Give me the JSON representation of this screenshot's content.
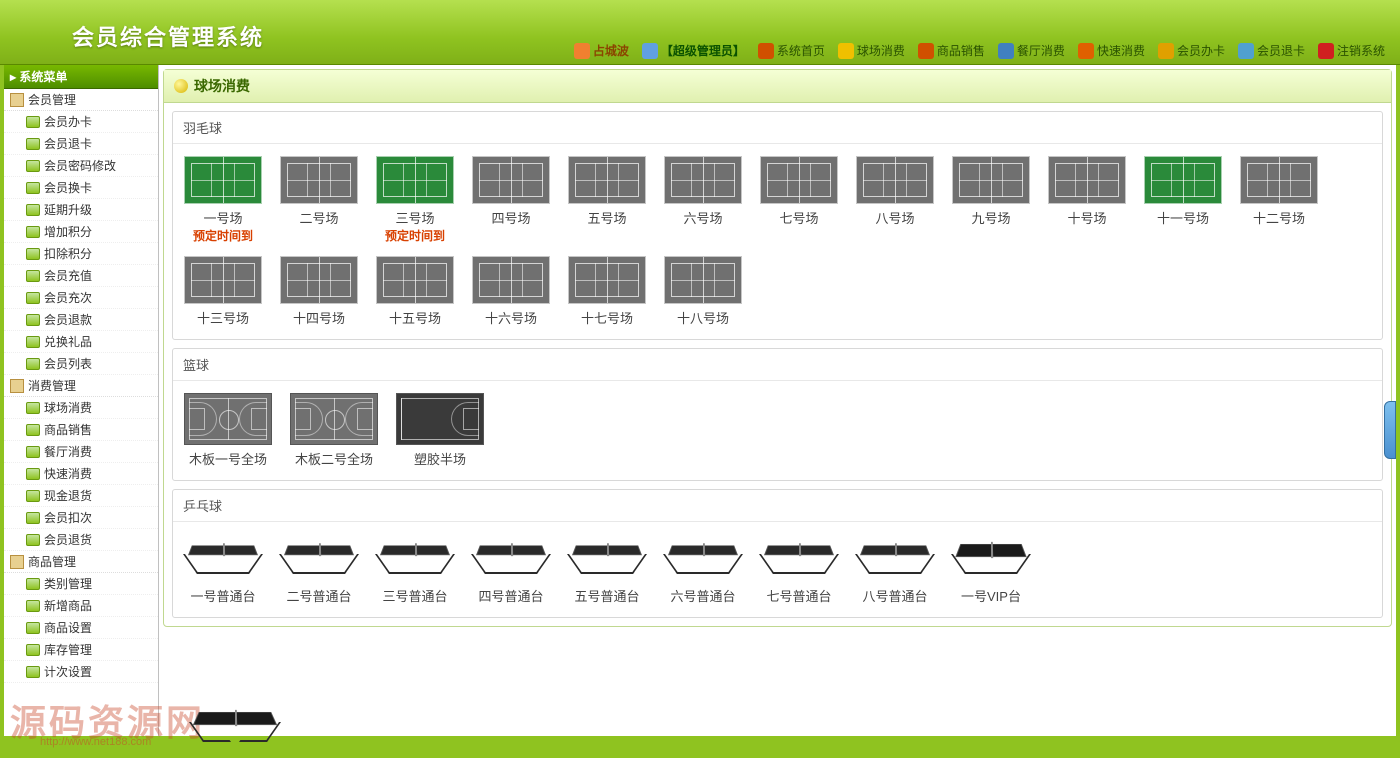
{
  "header": {
    "system_title": "会员综合管理系统",
    "user_label": "占城波",
    "admin_label": "【超级管理员】",
    "nav": [
      {
        "label": "系统首页",
        "color": "#d05000"
      },
      {
        "label": "球场消费",
        "color": "#f0c000"
      },
      {
        "label": "商品销售",
        "color": "#d05000"
      },
      {
        "label": "餐厅消费",
        "color": "#4080c0"
      },
      {
        "label": "快速消费",
        "color": "#e06000"
      },
      {
        "label": "会员办卡",
        "color": "#e0a000"
      },
      {
        "label": "会员退卡",
        "color": "#50a0d0"
      },
      {
        "label": "注销系统",
        "color": "#d02020"
      }
    ]
  },
  "sidebar": {
    "title": "系统菜单",
    "groups": [
      {
        "label": "会员管理",
        "items": [
          "会员办卡",
          "会员退卡",
          "会员密码修改",
          "会员换卡",
          "延期升级",
          "增加积分",
          "扣除积分",
          "会员充值",
          "会员充次",
          "会员退款",
          "兑换礼品",
          "会员列表"
        ]
      },
      {
        "label": "消费管理",
        "items": [
          "球场消费",
          "商品销售",
          "餐厅消费",
          "快速消费",
          "现金退货",
          "会员扣次",
          "会员退货"
        ]
      },
      {
        "label": "商品管理",
        "items": [
          "类别管理",
          "新增商品",
          "商品设置",
          "库存管理",
          "计次设置"
        ]
      }
    ]
  },
  "page": {
    "title": "球场消费",
    "sections": [
      {
        "title": "羽毛球",
        "type": "badminton",
        "courts": [
          {
            "name": "一号场",
            "state": "avail",
            "status": "预定时间到"
          },
          {
            "name": "二号场",
            "state": "busy"
          },
          {
            "name": "三号场",
            "state": "avail",
            "status": "预定时间到"
          },
          {
            "name": "四号场",
            "state": "busy"
          },
          {
            "name": "五号场",
            "state": "busy"
          },
          {
            "name": "六号场",
            "state": "busy"
          },
          {
            "name": "七号场",
            "state": "busy"
          },
          {
            "name": "八号场",
            "state": "busy"
          },
          {
            "name": "九号场",
            "state": "busy"
          },
          {
            "name": "十号场",
            "state": "busy"
          },
          {
            "name": "十一号场",
            "state": "avail"
          },
          {
            "name": "十二号场",
            "state": "busy"
          },
          {
            "name": "十三号场",
            "state": "busy"
          },
          {
            "name": "十四号场",
            "state": "busy"
          },
          {
            "name": "十五号场",
            "state": "busy"
          },
          {
            "name": "十六号场",
            "state": "busy"
          },
          {
            "name": "十七号场",
            "state": "busy"
          },
          {
            "name": "十八号场",
            "state": "busy"
          }
        ]
      },
      {
        "title": "篮球",
        "type": "basketball",
        "courts": [
          {
            "name": "木板一号全场",
            "variant": "full"
          },
          {
            "name": "木板二号全场",
            "variant": "full"
          },
          {
            "name": "塑胶半场",
            "variant": "half"
          }
        ]
      },
      {
        "title": "乒乓球",
        "type": "pingpong",
        "courts": [
          {
            "name": "一号普通台"
          },
          {
            "name": "二号普通台"
          },
          {
            "name": "三号普通台"
          },
          {
            "name": "四号普通台"
          },
          {
            "name": "五号普通台"
          },
          {
            "name": "六号普通台"
          },
          {
            "name": "七号普通台"
          },
          {
            "name": "八号普通台"
          },
          {
            "name": "一号VIP台",
            "variant": "vip"
          }
        ]
      }
    ]
  },
  "watermark": {
    "text": "源码资源网",
    "url": "http://www.net188.com"
  },
  "colors": {
    "primary_green": "#8fc320",
    "avail_court": "#2a8a3a",
    "busy_court": "#707070",
    "status_text": "#d84000"
  }
}
